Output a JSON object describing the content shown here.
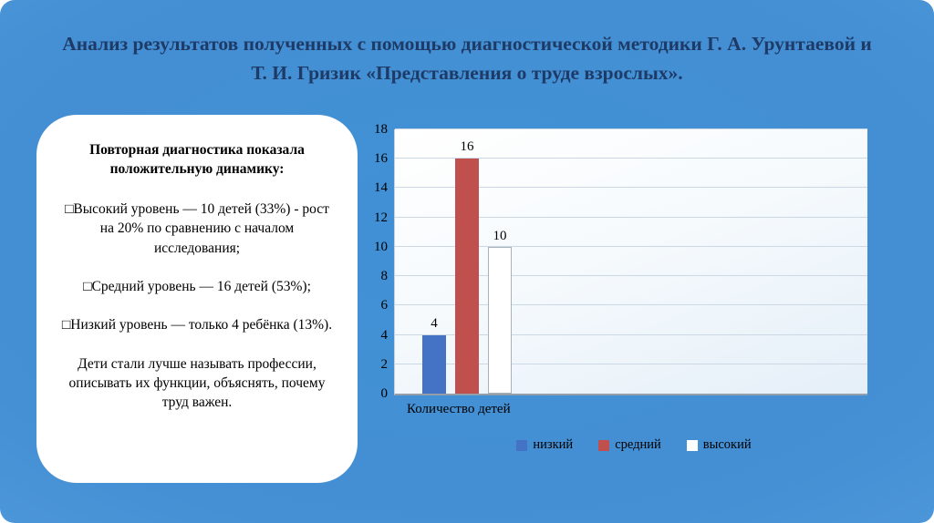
{
  "slide": {
    "title": "Анализ результатов полученных с помощью диагностической методики Г. А. Урунтаевой и Т. И. Гризик  «Представления о труде взрослых»."
  },
  "callout": {
    "heading": "Повторная диагностика показала положительную динамику:",
    "bullets": [
      "□Высокий уровень — 10 детей (33%) - рост на 20% по сравнению с началом исследования;",
      "□Средний уровень — 16 детей (53%);",
      "□Низкий уровень — только 4 ребёнка (13%)."
    ],
    "conclusion": "Дети стали лучше называть профессии, описывать их функции, объяснять, почему труд важен."
  },
  "chart_data": {
    "type": "bar",
    "categories": [
      "низкий",
      "средний",
      "высокий"
    ],
    "values": [
      4,
      16,
      10
    ],
    "data_labels": [
      "4",
      "16",
      "10"
    ],
    "colors": [
      "#4472C4",
      "#C0504D",
      "#FFFFFF"
    ],
    "title": "",
    "xlabel": "Количество детей",
    "ylabel": "",
    "ylim": [
      0,
      18
    ],
    "ytick_step": 2,
    "grid": true,
    "legend": [
      "низкий",
      "средний",
      "высокий"
    ],
    "legend_position": "bottom"
  }
}
